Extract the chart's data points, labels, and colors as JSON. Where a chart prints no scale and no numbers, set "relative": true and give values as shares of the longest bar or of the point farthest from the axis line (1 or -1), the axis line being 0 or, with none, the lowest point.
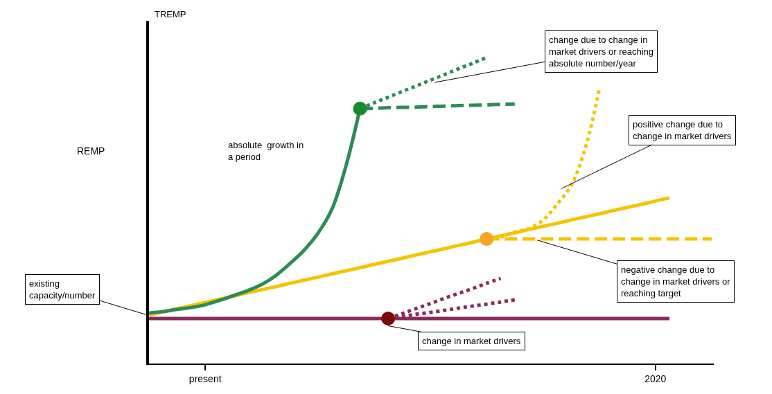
{
  "chart_data": {
    "type": "line",
    "relative": true,
    "ylabel": "REMP",
    "tick_labels": "x",
    "categories": [
      null,
      null,
      null,
      null,
      "present",
      null,
      null,
      null,
      null,
      null,
      null,
      null,
      null,
      null,
      null,
      null,
      null,
      null,
      null,
      null,
      null,
      null,
      null,
      null,
      null,
      null,
      null,
      null,
      null,
      null,
      null,
      null,
      null,
      null,
      null,
      null,
      "2020",
      null,
      null,
      null,
      null
    ],
    "series": [
      {
        "color": "#8b2a5a",
        "line_style": "solid",
        "values": [
          0.147,
          0.147,
          0.147,
          0.147,
          0.147,
          0.147,
          0.147,
          0.147,
          0.147,
          0.147,
          0.147,
          0.147,
          0.147,
          0.147,
          0.147,
          0.147,
          0.147,
          0.147,
          0.147,
          0.147,
          0.147,
          0.147,
          0.147,
          0.147,
          0.147,
          0.147,
          0.147,
          0.147,
          0.147,
          0.147,
          0.147,
          0.147,
          0.147,
          0.147,
          0.147,
          0.147,
          0.147,
          0.147,
          null,
          null,
          null
        ]
      },
      {
        "color": "#f5c400",
        "line_style": "solid",
        "values": [
          0.158,
          0.169,
          0.179,
          0.189,
          0.2,
          0.21,
          0.22,
          0.231,
          0.241,
          0.251,
          0.262,
          0.272,
          0.282,
          0.293,
          0.303,
          0.313,
          0.324,
          0.334,
          0.344,
          0.355,
          0.365,
          0.375,
          0.386,
          0.396,
          0.407,
          0.417,
          0.427,
          0.438,
          0.448,
          0.458,
          0.469,
          0.479,
          0.489,
          0.5,
          0.51,
          0.52,
          0.531,
          0.541,
          null,
          null,
          null
        ]
      },
      {
        "color": "#2e8b57",
        "line_style": "solid",
        "values": [
          0.165,
          0.17,
          0.177,
          0.183,
          0.192,
          0.206,
          0.222,
          0.238,
          0.258,
          0.287,
          0.326,
          0.369,
          0.425,
          0.504,
          0.645,
          0.833,
          null,
          null,
          null,
          null,
          null,
          null,
          null,
          null,
          null,
          null,
          null,
          null,
          null,
          null,
          null,
          null,
          null,
          null,
          null,
          null,
          null,
          null,
          null,
          null,
          null
        ]
      },
      {
        "color": "#2e8b57",
        "line_style": "dotted",
        "values": [
          null,
          null,
          null,
          null,
          null,
          null,
          null,
          null,
          null,
          null,
          null,
          null,
          null,
          null,
          null,
          0.833,
          0.852,
          0.87,
          0.889,
          0.907,
          0.926,
          0.944,
          0.963,
          0.981,
          1.0,
          null,
          null,
          null,
          null,
          null,
          null,
          null,
          null,
          null,
          null,
          null,
          null,
          null,
          null,
          null,
          null
        ]
      },
      {
        "color": "#2e8b57",
        "line_style": "dashed",
        "values": [
          null,
          null,
          null,
          null,
          null,
          null,
          null,
          null,
          null,
          null,
          null,
          null,
          null,
          null,
          null,
          0.833,
          0.834,
          0.836,
          0.837,
          0.838,
          0.84,
          0.841,
          0.843,
          0.844,
          0.845,
          0.847,
          0.848,
          null,
          null,
          null,
          null,
          null,
          null,
          null,
          null,
          null,
          null,
          null,
          null,
          null,
          null
        ]
      },
      {
        "color": "#f5c400",
        "line_style": "dotted",
        "values": [
          null,
          null,
          null,
          null,
          null,
          null,
          null,
          null,
          null,
          null,
          null,
          null,
          null,
          null,
          null,
          null,
          null,
          null,
          null,
          null,
          null,
          null,
          null,
          null,
          0.407,
          0.414,
          0.43,
          0.441,
          0.468,
          0.52,
          0.581,
          0.701,
          0.894,
          null,
          null,
          null,
          null,
          null,
          null,
          null,
          null
        ]
      },
      {
        "color": "#f5c400",
        "line_style": "dashed",
        "values": [
          null,
          null,
          null,
          null,
          null,
          null,
          null,
          null,
          null,
          null,
          null,
          null,
          null,
          null,
          null,
          null,
          null,
          null,
          null,
          null,
          null,
          null,
          null,
          null,
          0.407,
          0.407,
          0.407,
          0.407,
          0.407,
          0.407,
          0.407,
          0.407,
          0.407,
          0.407,
          0.407,
          0.407,
          0.407,
          0.407,
          0.407,
          0.407,
          0.407
        ]
      },
      {
        "color": "#8b2a5a",
        "line_style": "dotted",
        "values": [
          null,
          null,
          null,
          null,
          null,
          null,
          null,
          null,
          null,
          null,
          null,
          null,
          null,
          null,
          null,
          null,
          null,
          0.147,
          0.163,
          0.18,
          0.196,
          0.213,
          0.229,
          0.245,
          0.262,
          0.278,
          null,
          null,
          null,
          null,
          null,
          null,
          null,
          null,
          null,
          null,
          null,
          null,
          null,
          null,
          null
        ]
      },
      {
        "color": "#8b2a5a",
        "line_style": "dotted",
        "values": [
          null,
          null,
          null,
          null,
          null,
          null,
          null,
          null,
          null,
          null,
          null,
          null,
          null,
          null,
          null,
          null,
          null,
          0.147,
          0.154,
          0.161,
          0.167,
          0.174,
          0.181,
          0.188,
          0.194,
          0.201,
          0.208,
          null,
          null,
          null,
          null,
          null,
          null,
          null,
          null,
          null,
          null,
          null,
          null,
          null,
          null
        ]
      },
      {
        "type": "scatter",
        "color": "#1a8a2a",
        "marker": "circle",
        "values": [
          null,
          null,
          null,
          null,
          null,
          null,
          null,
          null,
          null,
          null,
          null,
          null,
          null,
          null,
          null,
          0.833,
          null,
          null,
          null,
          null,
          null,
          null,
          null,
          null,
          null,
          null,
          null,
          null,
          null,
          null,
          null,
          null,
          null,
          null,
          null,
          null,
          null,
          null,
          null,
          null,
          null
        ]
      },
      {
        "type": "scatter",
        "color": "#f5a623",
        "marker": "circle",
        "values": [
          null,
          null,
          null,
          null,
          null,
          null,
          null,
          null,
          null,
          null,
          null,
          null,
          null,
          null,
          null,
          null,
          null,
          null,
          null,
          null,
          null,
          null,
          null,
          null,
          0.407,
          null,
          null,
          null,
          null,
          null,
          null,
          null,
          null,
          null,
          null,
          null,
          null,
          null,
          null,
          null,
          null
        ]
      },
      {
        "type": "scatter",
        "color": "#7a0a0a",
        "marker": "circle",
        "values": [
          null,
          null,
          null,
          null,
          null,
          null,
          null,
          null,
          null,
          null,
          null,
          null,
          null,
          null,
          null,
          null,
          null,
          0.147,
          null,
          null,
          null,
          null,
          null,
          null,
          null,
          null,
          null,
          null,
          null,
          null,
          null,
          null,
          null,
          null,
          null,
          null,
          null,
          null,
          null,
          null,
          null
        ]
      }
    ],
    "annotations": [
      "TREMP",
      "absolute  growth in\na period",
      "change due to change in\nmarket drivers or reaching\nabsolute number/year",
      "positive change due to\nchange in market drivers",
      "negative change due to\nchange in market drivers or\nreaching target",
      "change in market drivers",
      "existing\ncapacity/number"
    ]
  }
}
